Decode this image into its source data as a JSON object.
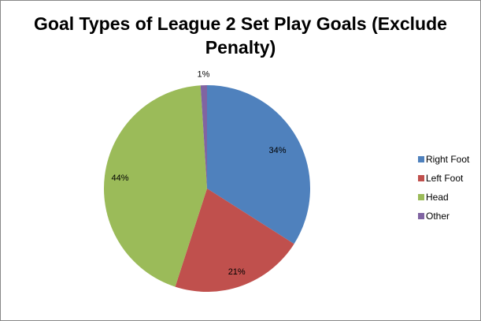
{
  "chart_data": {
    "type": "pie",
    "title": "Goal Types of League 2 Set Play Goals (Exclude Penalty)",
    "categories": [
      "Right Foot",
      "Left Foot",
      "Head",
      "Other"
    ],
    "values": [
      34,
      21,
      44,
      1
    ],
    "data_labels": [
      "34%",
      "21%",
      "44%",
      "1%"
    ],
    "colors": [
      "#4F81BD",
      "#C0504D",
      "#9BBB59",
      "#8064A2"
    ],
    "legend_position": "right",
    "start": "top, clockwise"
  }
}
